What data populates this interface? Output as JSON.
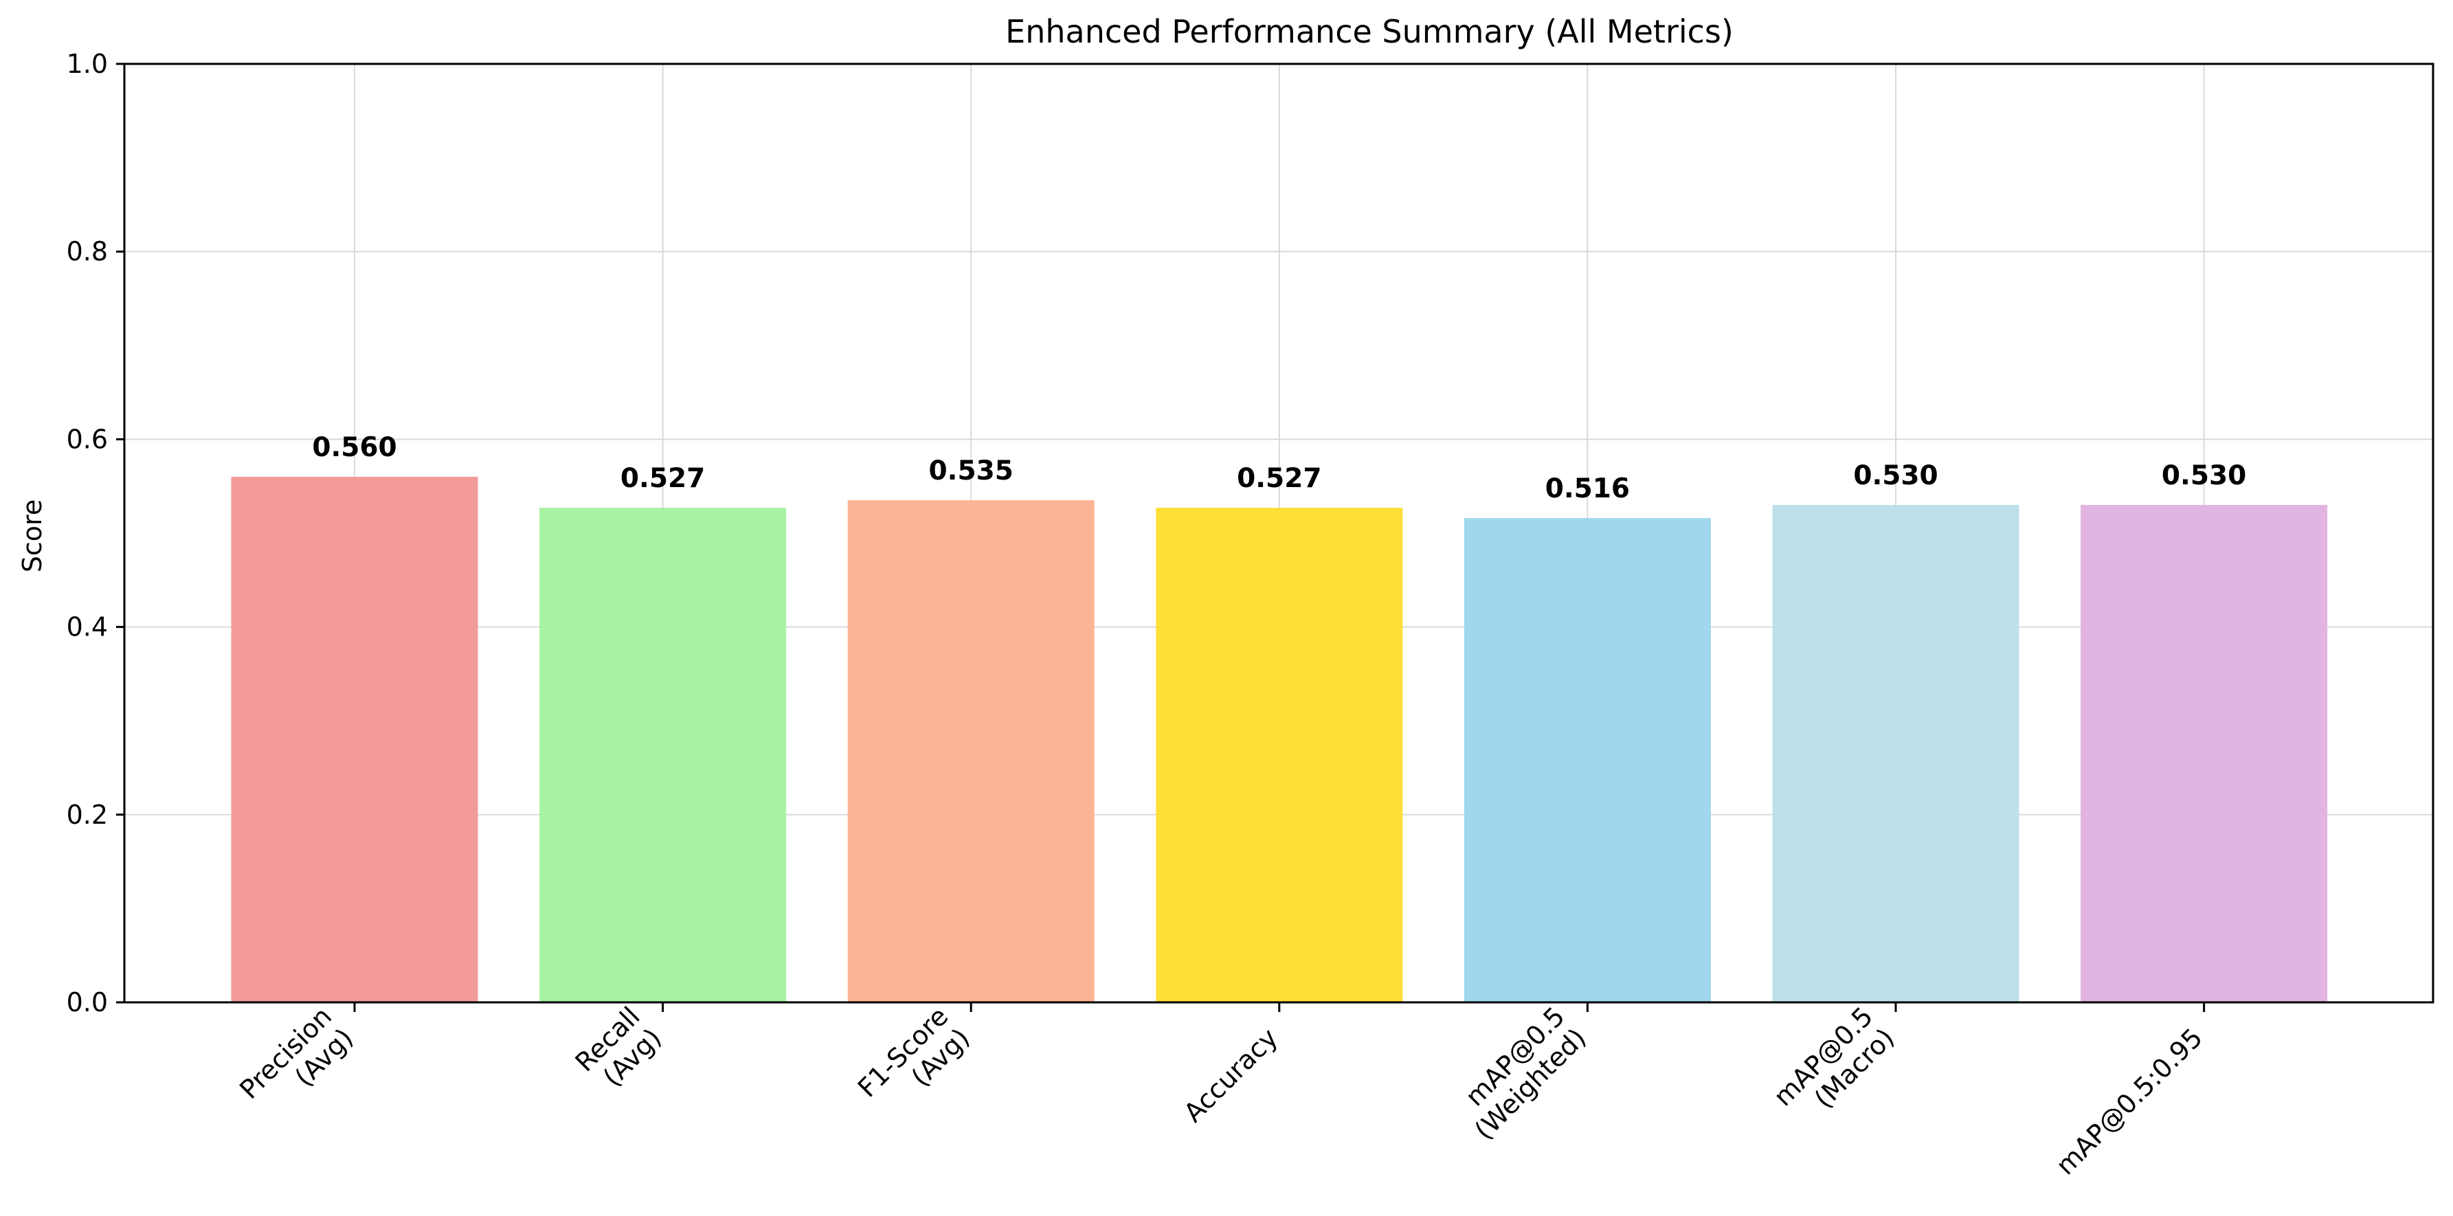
{
  "chart_data": {
    "type": "bar",
    "title": "Enhanced Performance Summary (All Metrics)",
    "xlabel": "",
    "ylabel": "Score",
    "ylim": [
      0,
      1.0
    ],
    "yticks": [
      "0.0",
      "0.2",
      "0.4",
      "0.6",
      "0.8",
      "1.0"
    ],
    "categories": [
      "Precision\n(Avg)",
      "Recall\n(Avg)",
      "F1-Score\n(Avg)",
      "Accuracy",
      "mAP@0.5\n(Weighted)",
      "mAP@0.5\n(Macro)",
      "mAP@0.5:0.95"
    ],
    "values": [
      0.56,
      0.527,
      0.535,
      0.527,
      0.516,
      0.53,
      0.53
    ],
    "value_labels": [
      "0.560",
      "0.527",
      "0.535",
      "0.527",
      "0.516",
      "0.530",
      "0.530"
    ],
    "colors": [
      "#f29b9a",
      "#a7f2a5",
      "#fdb396",
      "#fedf38",
      "#a0d7ec",
      "#bee0ea",
      "#e2b4e2"
    ],
    "grid": true,
    "tick_label_rotation_deg": 45
  }
}
